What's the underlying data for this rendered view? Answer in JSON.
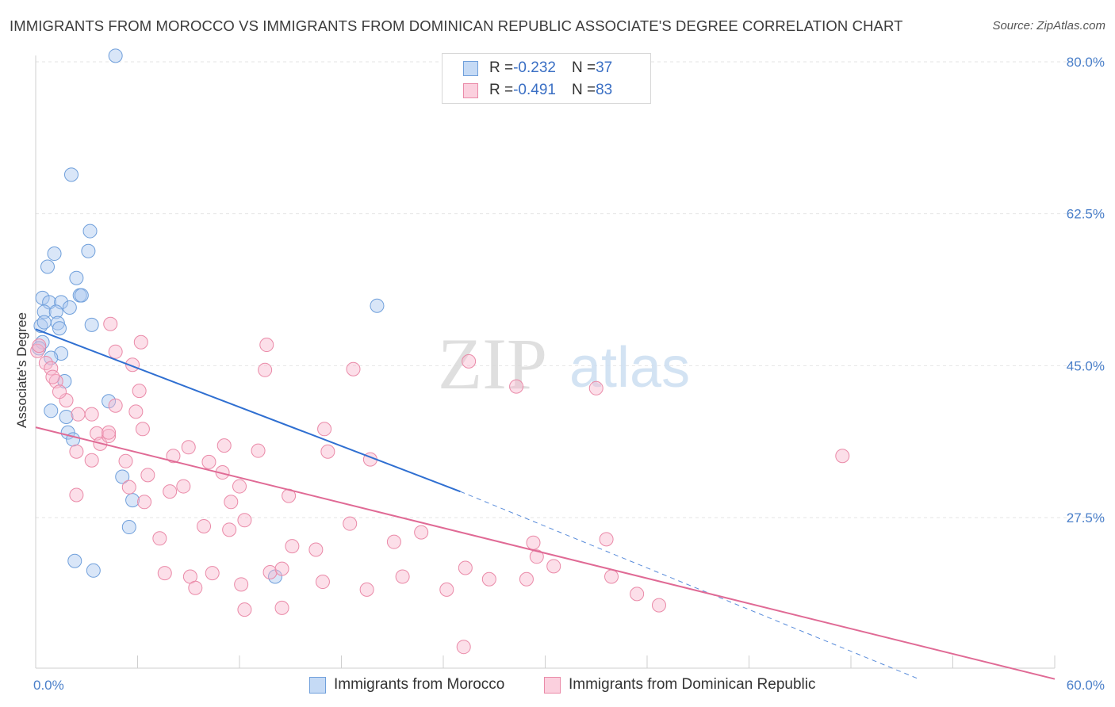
{
  "title": "IMMIGRANTS FROM MOROCCO VS IMMIGRANTS FROM DOMINICAN REPUBLIC ASSOCIATE'S DEGREE CORRELATION CHART",
  "source": "Source: ZipAtlas.com",
  "watermark": {
    "zip": "ZIP",
    "atlas": "atlas"
  },
  "legend": {
    "rows": [
      {
        "r_label": "R = ",
        "r_value": "-0.232",
        "n_label": "N = ",
        "n_value": "37",
        "color": "#8db4e8"
      },
      {
        "r_label": "R = ",
        "r_value": "-0.491",
        "n_label": "N = ",
        "n_value": "83",
        "color": "#f4a3bd"
      }
    ]
  },
  "bottom_legend": [
    {
      "label": "Immigrants from Morocco",
      "color": "#8db4e8"
    },
    {
      "label": "Immigrants from Dominican Republic",
      "color": "#f4a3bd"
    }
  ],
  "chart_data": {
    "type": "scatter",
    "title": "IMMIGRANTS FROM MOROCCO VS IMMIGRANTS FROM DOMINICAN REPUBLIC ASSOCIATE'S DEGREE CORRELATION CHART",
    "xlabel": "",
    "ylabel": "Associate's Degree",
    "xlim": [
      0,
      60
    ],
    "ylim": [
      7.5,
      83
    ],
    "x_tick_labels": [
      "0.0%",
      "60.0%"
    ],
    "y_ticks": [
      27.5,
      45.0,
      62.5,
      80.0
    ],
    "y_tick_labels": [
      "27.5%",
      "45.0%",
      "62.5%",
      "80.0%"
    ],
    "grid": true,
    "series": [
      {
        "name": "Immigrants from Morocco",
        "color": "#8db4e8",
        "edge": "#6f9fdb",
        "points": [
          [
            4.7,
            80.7
          ],
          [
            2.1,
            67.0
          ],
          [
            3.2,
            60.5
          ],
          [
            3.1,
            58.2
          ],
          [
            1.1,
            57.9
          ],
          [
            0.7,
            56.4
          ],
          [
            2.4,
            55.1
          ],
          [
            2.6,
            53.1
          ],
          [
            2.7,
            53.1
          ],
          [
            0.4,
            52.8
          ],
          [
            0.8,
            52.3
          ],
          [
            1.5,
            52.3
          ],
          [
            2.0,
            51.7
          ],
          [
            0.5,
            51.2
          ],
          [
            1.2,
            51.2
          ],
          [
            1.3,
            49.9
          ],
          [
            3.3,
            49.7
          ],
          [
            0.3,
            49.6
          ],
          [
            1.4,
            49.3
          ],
          [
            0.4,
            47.7
          ],
          [
            1.5,
            46.4
          ],
          [
            0.9,
            45.9
          ],
          [
            1.7,
            43.2
          ],
          [
            4.3,
            40.9
          ],
          [
            0.9,
            39.8
          ],
          [
            1.8,
            39.1
          ],
          [
            1.9,
            37.3
          ],
          [
            2.2,
            36.5
          ],
          [
            5.1,
            32.2
          ],
          [
            5.7,
            29.5
          ],
          [
            5.5,
            26.4
          ],
          [
            2.3,
            22.5
          ],
          [
            3.4,
            21.4
          ],
          [
            14.1,
            20.7
          ],
          [
            20.1,
            51.9
          ],
          [
            0.2,
            47.0
          ],
          [
            0.5,
            50.0
          ]
        ]
      },
      {
        "name": "Immigrants from Dominican Republic",
        "color": "#f4a3bd",
        "edge": "#ea8aa8",
        "points": [
          [
            0.1,
            46.7
          ],
          [
            0.6,
            45.3
          ],
          [
            0.9,
            44.7
          ],
          [
            1.2,
            43.2
          ],
          [
            1.0,
            43.7
          ],
          [
            1.8,
            41.0
          ],
          [
            2.5,
            39.4
          ],
          [
            3.3,
            39.4
          ],
          [
            3.6,
            37.2
          ],
          [
            2.4,
            35.1
          ],
          [
            3.3,
            34.1
          ],
          [
            3.8,
            36.0
          ],
          [
            4.3,
            36.9
          ],
          [
            4.7,
            40.4
          ],
          [
            5.3,
            34.0
          ],
          [
            5.5,
            31.0
          ],
          [
            4.7,
            46.6
          ],
          [
            5.7,
            45.1
          ],
          [
            6.1,
            42.1
          ],
          [
            5.9,
            39.7
          ],
          [
            6.4,
            29.3
          ],
          [
            6.6,
            32.4
          ],
          [
            7.3,
            25.1
          ],
          [
            7.6,
            21.1
          ],
          [
            7.9,
            30.5
          ],
          [
            8.1,
            34.6
          ],
          [
            8.7,
            31.1
          ],
          [
            9.0,
            35.6
          ],
          [
            9.1,
            20.7
          ],
          [
            9.4,
            19.4
          ],
          [
            9.9,
            26.5
          ],
          [
            10.2,
            33.9
          ],
          [
            10.4,
            21.1
          ],
          [
            11.0,
            32.7
          ],
          [
            11.1,
            35.8
          ],
          [
            11.4,
            26.1
          ],
          [
            11.5,
            29.3
          ],
          [
            12.0,
            31.1
          ],
          [
            12.1,
            19.8
          ],
          [
            12.3,
            27.2
          ],
          [
            12.3,
            16.9
          ],
          [
            13.1,
            35.2
          ],
          [
            13.5,
            44.5
          ],
          [
            13.8,
            21.2
          ],
          [
            14.5,
            17.1
          ],
          [
            14.9,
            30.0
          ],
          [
            15.1,
            24.2
          ],
          [
            16.5,
            23.8
          ],
          [
            16.9,
            20.1
          ],
          [
            17.0,
            37.7
          ],
          [
            17.2,
            35.1
          ],
          [
            18.5,
            26.8
          ],
          [
            18.7,
            44.6
          ],
          [
            19.7,
            34.2
          ],
          [
            19.5,
            19.2
          ],
          [
            21.1,
            24.7
          ],
          [
            21.6,
            20.7
          ],
          [
            22.7,
            25.8
          ],
          [
            24.2,
            19.2
          ],
          [
            25.3,
            21.7
          ],
          [
            25.5,
            45.5
          ],
          [
            26.7,
            20.4
          ],
          [
            28.3,
            42.6
          ],
          [
            28.9,
            20.4
          ],
          [
            29.3,
            24.6
          ],
          [
            29.5,
            23.0
          ],
          [
            30.5,
            21.9
          ],
          [
            33.0,
            42.4
          ],
          [
            33.6,
            25.0
          ],
          [
            33.9,
            20.7
          ],
          [
            35.4,
            18.7
          ],
          [
            36.7,
            17.4
          ],
          [
            47.5,
            34.6
          ],
          [
            25.2,
            12.6
          ],
          [
            2.4,
            30.1
          ],
          [
            4.3,
            37.3
          ],
          [
            0.2,
            47.3
          ],
          [
            1.4,
            42.0
          ],
          [
            4.4,
            49.8
          ],
          [
            6.2,
            47.7
          ],
          [
            13.6,
            47.4
          ],
          [
            14.5,
            21.6
          ],
          [
            6.3,
            37.7
          ]
        ]
      }
    ],
    "trendlines": [
      {
        "series": "Immigrants from Morocco",
        "color": "#2f6fd1",
        "solid": [
          [
            0,
            49.2
          ],
          [
            25.0,
            30.5
          ]
        ],
        "dashed": [
          [
            25.0,
            30.5
          ],
          [
            52.0,
            8.9
          ]
        ]
      },
      {
        "series": "Immigrants from Dominican Republic",
        "color": "#e06a95",
        "solid": [
          [
            0,
            37.9
          ],
          [
            60.0,
            8.9
          ]
        ]
      }
    ]
  }
}
